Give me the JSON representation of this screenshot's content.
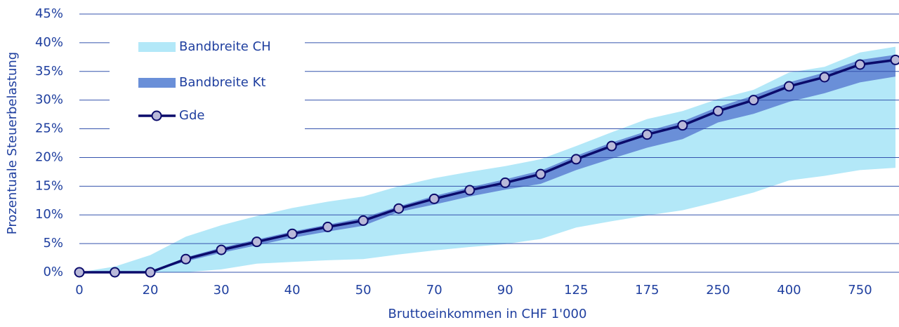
{
  "chart_data": {
    "type": "line",
    "x_label": "Bruttoeinkommen in CHF 1'000",
    "y_label": "Prozentuale Steuerbelastung",
    "categories": [
      "0",
      null,
      "20",
      null,
      "30",
      null,
      "40",
      null,
      "50",
      null,
      "70",
      null,
      "90",
      null,
      "125",
      null,
      "175",
      null,
      "250",
      null,
      "400",
      null,
      "750",
      null
    ],
    "ylim": [
      0,
      45
    ],
    "yticks": [
      {
        "value": 0,
        "label": "0%"
      },
      {
        "value": 5,
        "label": "5%"
      },
      {
        "value": 10,
        "label": "10%"
      },
      {
        "value": 15,
        "label": "15%"
      },
      {
        "value": 20,
        "label": "20%"
      },
      {
        "value": 25,
        "label": "25%"
      },
      {
        "value": 30,
        "label": "30%"
      },
      {
        "value": 35,
        "label": "35%"
      },
      {
        "value": 40,
        "label": "40%"
      },
      {
        "value": 45,
        "label": "45%"
      }
    ],
    "grid": true,
    "legend": "upper left",
    "bands": [
      {
        "name": "Bandbreite CH",
        "color": "#b3e8f8",
        "upper": [
          0,
          1,
          3,
          6.2,
          8.2,
          9.8,
          11.2,
          12.3,
          13.2,
          15.0,
          16.4,
          17.5,
          18.5,
          19.7,
          22.0,
          24.4,
          26.7,
          28.1,
          30.2,
          31.8,
          34.8,
          35.8,
          38.3,
          39.3
        ],
        "lower": [
          0,
          0,
          0,
          0,
          0.5,
          1.5,
          1.8,
          2.1,
          2.3,
          3.1,
          3.8,
          4.4,
          4.9,
          5.8,
          7.8,
          8.9,
          9.9,
          10.8,
          12.3,
          13.9,
          16.0,
          16.8,
          17.8,
          18.2
        ]
      },
      {
        "name": "Bandbreite Kt",
        "color": "#6a8fd8",
        "upper": [
          0,
          0,
          0,
          2.6,
          4.3,
          5.7,
          7.1,
          8.3,
          9.5,
          11.5,
          13.3,
          14.8,
          16.2,
          17.7,
          20.3,
          22.6,
          24.6,
          26.3,
          28.8,
          30.8,
          33.1,
          34.8,
          37.0,
          37.9
        ],
        "lower": [
          0,
          0,
          0,
          1.9,
          3.4,
          4.7,
          6.0,
          7.1,
          8.1,
          10.5,
          11.8,
          13.2,
          14.4,
          15.4,
          17.8,
          19.8,
          21.7,
          23.2,
          26.1,
          27.6,
          29.7,
          31.2,
          33.1,
          34.1
        ]
      }
    ],
    "series": [
      {
        "name": "Gde",
        "color": "#0b0b6b",
        "marker_color": "#b9b9d9",
        "values": [
          0,
          0,
          0,
          2.3,
          3.9,
          5.3,
          6.7,
          7.9,
          9.0,
          11.1,
          12.8,
          14.3,
          15.6,
          17.1,
          19.7,
          22.0,
          24.0,
          25.6,
          28.1,
          30.0,
          32.4,
          34.0,
          36.2,
          37.0
        ]
      }
    ]
  }
}
